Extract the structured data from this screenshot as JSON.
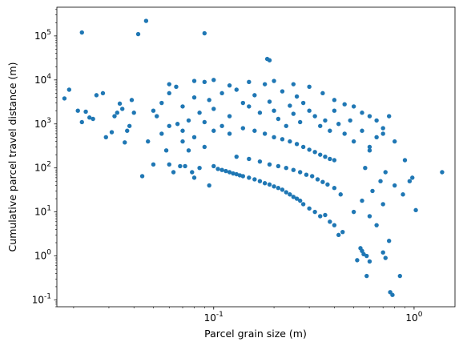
{
  "chart_data": {
    "type": "scatter",
    "xlabel": "Parcel grain size (m)",
    "ylabel": "Cumulative parcel travel distance (m)",
    "xscale": "log",
    "yscale": "log",
    "xlim": [
      0.0165,
      1.6
    ],
    "ylim": [
      0.07,
      450000
    ],
    "grid": false,
    "color": "#1f77b4",
    "x_ticks": [
      {
        "value": 0.1,
        "label": "10^-1"
      },
      {
        "value": 1,
        "label": "10^0"
      }
    ],
    "y_ticks": [
      {
        "value": 0.1,
        "label": "10^-1"
      },
      {
        "value": 1,
        "label": "10^0"
      },
      {
        "value": 10,
        "label": "10^1"
      },
      {
        "value": 100,
        "label": "10^2"
      },
      {
        "value": 1000,
        "label": "10^3"
      },
      {
        "value": 10000,
        "label": "10^4"
      },
      {
        "value": 100000,
        "label": "10^5"
      }
    ],
    "points": [
      [
        0.022,
        120000
      ],
      [
        0.042,
        110000
      ],
      [
        0.046,
        220000
      ],
      [
        0.09,
        115000
      ],
      [
        0.185,
        30000
      ],
      [
        0.19,
        28000
      ],
      [
        0.018,
        3800
      ],
      [
        0.019,
        6000
      ],
      [
        0.021,
        2000
      ],
      [
        0.022,
        1100
      ],
      [
        0.023,
        1900
      ],
      [
        0.024,
        1400
      ],
      [
        0.025,
        1300
      ],
      [
        0.026,
        4500
      ],
      [
        0.028,
        5000
      ],
      [
        0.029,
        500
      ],
      [
        0.031,
        650
      ],
      [
        0.032,
        1500
      ],
      [
        0.033,
        1800
      ],
      [
        0.034,
        2900
      ],
      [
        0.035,
        2200
      ],
      [
        0.036,
        380
      ],
      [
        0.037,
        700
      ],
      [
        0.038,
        900
      ],
      [
        0.039,
        3500
      ],
      [
        0.04,
        1800
      ],
      [
        0.044,
        65
      ],
      [
        0.047,
        400
      ],
      [
        0.05,
        120
      ],
      [
        0.052,
        1500
      ],
      [
        0.055,
        600
      ],
      [
        0.058,
        250
      ],
      [
        0.06,
        120
      ],
      [
        0.063,
        80
      ],
      [
        0.066,
        1000
      ],
      [
        0.068,
        110
      ],
      [
        0.07,
        400
      ],
      [
        0.072,
        110
      ],
      [
        0.075,
        250
      ],
      [
        0.078,
        80
      ],
      [
        0.08,
        60
      ],
      [
        0.085,
        100
      ],
      [
        0.09,
        300
      ],
      [
        0.095,
        40
      ],
      [
        0.1,
        110
      ],
      [
        0.105,
        95
      ],
      [
        0.11,
        90
      ],
      [
        0.115,
        85
      ],
      [
        0.12,
        80
      ],
      [
        0.125,
        75
      ],
      [
        0.13,
        72
      ],
      [
        0.135,
        68
      ],
      [
        0.14,
        65
      ],
      [
        0.15,
        60
      ],
      [
        0.16,
        55
      ],
      [
        0.17,
        50
      ],
      [
        0.18,
        45
      ],
      [
        0.19,
        42
      ],
      [
        0.2,
        38
      ],
      [
        0.21,
        35
      ],
      [
        0.22,
        32
      ],
      [
        0.23,
        28
      ],
      [
        0.24,
        25
      ],
      [
        0.25,
        22
      ],
      [
        0.26,
        20
      ],
      [
        0.27,
        18
      ],
      [
        0.28,
        15
      ],
      [
        0.3,
        12
      ],
      [
        0.32,
        10
      ],
      [
        0.34,
        8
      ],
      [
        0.36,
        8.5
      ],
      [
        0.38,
        6
      ],
      [
        0.4,
        5
      ],
      [
        0.42,
        3
      ],
      [
        0.44,
        3.5
      ],
      [
        0.13,
        180
      ],
      [
        0.15,
        160
      ],
      [
        0.17,
        140
      ],
      [
        0.19,
        120
      ],
      [
        0.21,
        110
      ],
      [
        0.23,
        100
      ],
      [
        0.25,
        90
      ],
      [
        0.27,
        80
      ],
      [
        0.29,
        70
      ],
      [
        0.31,
        65
      ],
      [
        0.33,
        55
      ],
      [
        0.35,
        48
      ],
      [
        0.37,
        42
      ],
      [
        0.4,
        35
      ],
      [
        0.43,
        25
      ],
      [
        0.52,
        0.8
      ],
      [
        0.54,
        1.5
      ],
      [
        0.55,
        1.3
      ],
      [
        0.56,
        1.1
      ],
      [
        0.58,
        1.0
      ],
      [
        0.6,
        0.75
      ],
      [
        0.58,
        0.35
      ],
      [
        0.7,
        1.2
      ],
      [
        0.76,
        0.15
      ],
      [
        0.78,
        0.13
      ],
      [
        0.85,
        0.35
      ],
      [
        0.75,
        2.2
      ],
      [
        0.72,
        0.9
      ],
      [
        0.5,
        10
      ],
      [
        0.55,
        18
      ],
      [
        0.6,
        8
      ],
      [
        0.65,
        5
      ],
      [
        0.7,
        15
      ],
      [
        0.62,
        30
      ],
      [
        0.68,
        50
      ],
      [
        0.72,
        80
      ],
      [
        0.8,
        40
      ],
      [
        0.88,
        25
      ],
      [
        0.95,
        50
      ],
      [
        0.98,
        60
      ],
      [
        1.02,
        11
      ],
      [
        1.38,
        80
      ],
      [
        0.9,
        150
      ],
      [
        0.8,
        400
      ],
      [
        0.75,
        1500
      ],
      [
        0.7,
        800
      ],
      [
        0.65,
        500
      ],
      [
        0.6,
        250
      ],
      [
        0.57,
        100
      ],
      [
        0.05,
        2000
      ],
      [
        0.055,
        3000
      ],
      [
        0.06,
        5000
      ],
      [
        0.065,
        7000
      ],
      [
        0.07,
        2500
      ],
      [
        0.075,
        1200
      ],
      [
        0.08,
        4000
      ],
      [
        0.085,
        1800
      ],
      [
        0.09,
        9000
      ],
      [
        0.095,
        3500
      ],
      [
        0.1,
        2200
      ],
      [
        0.11,
        5000
      ],
      [
        0.12,
        1500
      ],
      [
        0.13,
        6000
      ],
      [
        0.14,
        3000
      ],
      [
        0.15,
        2500
      ],
      [
        0.16,
        4500
      ],
      [
        0.17,
        1800
      ],
      [
        0.18,
        8000
      ],
      [
        0.19,
        3200
      ],
      [
        0.2,
        2000
      ],
      [
        0.21,
        1300
      ],
      [
        0.22,
        5500
      ],
      [
        0.23,
        900
      ],
      [
        0.24,
        2600
      ],
      [
        0.25,
        1700
      ],
      [
        0.26,
        4200
      ],
      [
        0.27,
        1100
      ],
      [
        0.28,
        3000
      ],
      [
        0.3,
        2000
      ],
      [
        0.32,
        1500
      ],
      [
        0.34,
        900
      ],
      [
        0.36,
        1200
      ],
      [
        0.38,
        700
      ],
      [
        0.4,
        2000
      ],
      [
        0.42,
        1000
      ],
      [
        0.45,
        600
      ],
      [
        0.48,
        1200
      ],
      [
        0.5,
        400
      ],
      [
        0.55,
        700
      ],
      [
        0.6,
        300
      ],
      [
        0.65,
        1200
      ],
      [
        0.7,
        600
      ],
      [
        0.06,
        900
      ],
      [
        0.07,
        700
      ],
      [
        0.08,
        500
      ],
      [
        0.09,
        1100
      ],
      [
        0.1,
        700
      ],
      [
        0.11,
        900
      ],
      [
        0.12,
        600
      ],
      [
        0.14,
        800
      ],
      [
        0.16,
        700
      ],
      [
        0.18,
        600
      ],
      [
        0.2,
        500
      ],
      [
        0.22,
        450
      ],
      [
        0.24,
        400
      ],
      [
        0.26,
        350
      ],
      [
        0.28,
        300
      ],
      [
        0.3,
        260
      ],
      [
        0.32,
        230
      ],
      [
        0.34,
        200
      ],
      [
        0.36,
        180
      ],
      [
        0.38,
        160
      ],
      [
        0.4,
        150
      ],
      [
        0.06,
        8000
      ],
      [
        0.08,
        9500
      ],
      [
        0.1,
        10000
      ],
      [
        0.12,
        7500
      ],
      [
        0.15,
        9000
      ],
      [
        0.2,
        9500
      ],
      [
        0.25,
        8000
      ],
      [
        0.3,
        7000
      ],
      [
        0.35,
        5000
      ],
      [
        0.4,
        3500
      ],
      [
        0.45,
        2800
      ],
      [
        0.5,
        2500
      ],
      [
        0.55,
        1800
      ],
      [
        0.6,
        1500
      ]
    ]
  }
}
